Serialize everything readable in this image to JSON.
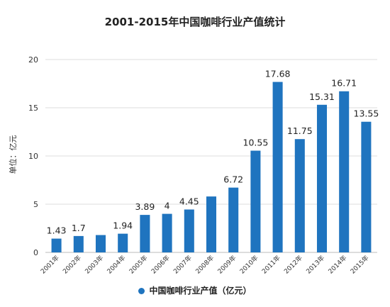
{
  "chart_data": {
    "type": "bar",
    "title": "2001-2015年中国咖啡行业产值统计",
    "ylabel": "单位：亿元",
    "xlabel": "",
    "ylim": [
      0,
      20
    ],
    "yticks": [
      "0",
      "5",
      "10",
      "15",
      "20"
    ],
    "grid": true,
    "legend_position": "bottom",
    "color": "#1f74bf",
    "categories": [
      "2001年",
      "2002年",
      "2003年",
      "2004年",
      "2005年",
      "2006年",
      "2007年",
      "2008年",
      "2009年",
      "2010年",
      "2011年",
      "2012年",
      "2013年",
      "2014年",
      "2015年"
    ],
    "series": [
      {
        "name": "中国咖啡行业产值（亿元）",
        "values": [
          1.43,
          1.7,
          1.8,
          1.94,
          3.89,
          4,
          4.45,
          5.8,
          6.72,
          10.55,
          17.68,
          11.75,
          15.31,
          16.71,
          13.55
        ],
        "data_labels": [
          "1.43",
          "1.7",
          "",
          "1.94",
          "3.89",
          "4",
          "4.45",
          "",
          "6.72",
          "10.55",
          "17.68",
          "11.75",
          "15.31",
          "16.71",
          "13.55"
        ]
      }
    ]
  }
}
